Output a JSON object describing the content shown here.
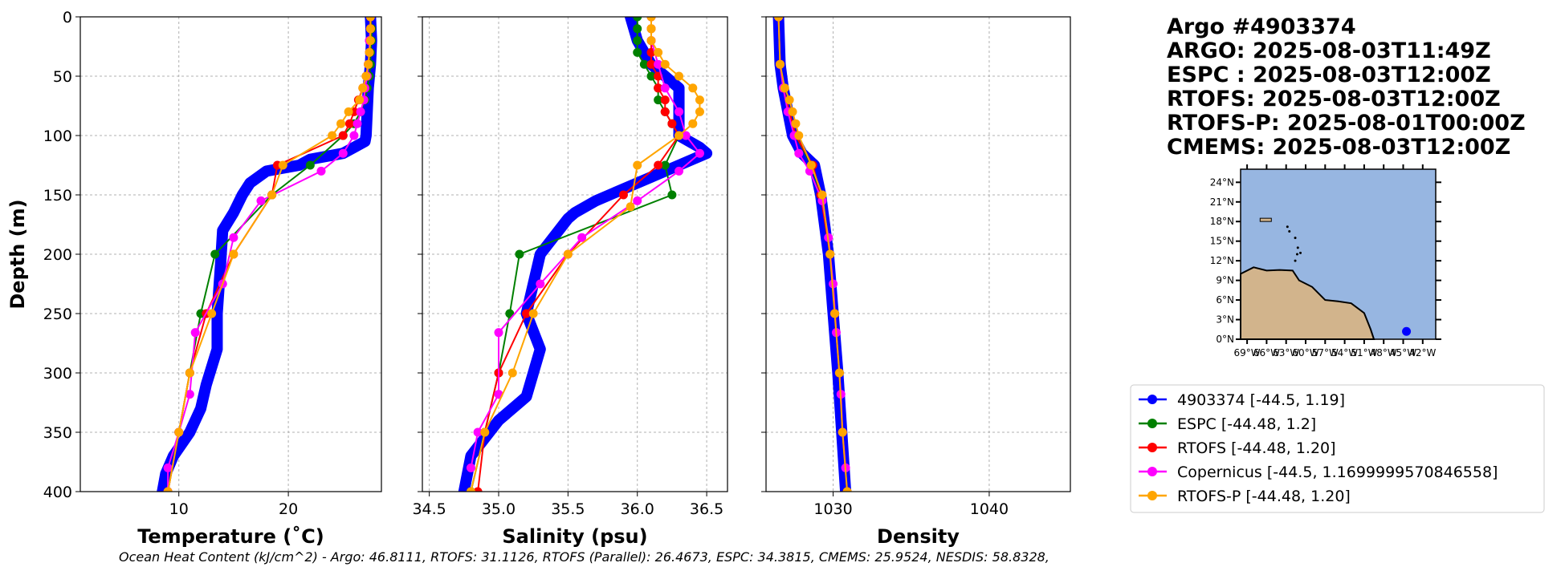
{
  "title_lines": [
    "Argo #4903374",
    "ARGO: 2025-08-03T11:49Z",
    "ESPC : 2025-08-03T12:00Z",
    "RTOFS: 2025-08-03T12:00Z",
    "RTOFS-P: 2025-08-01T00:00Z",
    "CMEMS: 2025-08-03T12:00Z"
  ],
  "ohc_text": "Ocean Heat Content (kJ/cm^2) - Argo: 46.8111,  RTOFS: 31.1126,  RTOFS (Parallel): 26.4673,  ESPC: 34.3815,  CMEMS: 25.9524,  NESDIS: 58.8328,",
  "chart_data": [
    {
      "type": "line",
      "xlabel": "Temperature (˚C)",
      "ylabel": "Depth (m)",
      "xlim": [
        1,
        28.5
      ],
      "ylim": [
        400,
        0
      ],
      "xticks": [
        10,
        20
      ],
      "yticks": [
        0,
        50,
        100,
        150,
        200,
        250,
        300,
        350,
        400
      ],
      "grid": true,
      "series": [
        {
          "name": "Argo",
          "color": "#0000ff",
          "depth": [
            0,
            20,
            40,
            60,
            80,
            100,
            105,
            110,
            115,
            120,
            125,
            130,
            140,
            150,
            165,
            180,
            210,
            250,
            280,
            310,
            330,
            350,
            370,
            385,
            400
          ],
          "values": [
            27.5,
            27.6,
            27.5,
            27.3,
            27.2,
            27.1,
            27,
            26,
            25,
            22,
            21,
            18,
            16.5,
            15.8,
            15,
            14,
            13.8,
            13.5,
            13.5,
            12.5,
            12,
            11,
            9.5,
            8.8,
            8.5
          ]
        },
        {
          "name": "ESPC",
          "color": "#008000",
          "depth": [
            0,
            10,
            20,
            30,
            40,
            50,
            60,
            70,
            80,
            90,
            100,
            125,
            150,
            200,
            250,
            300,
            350,
            400
          ],
          "values": [
            27.5,
            27.6,
            27.6,
            27.5,
            27.5,
            27.4,
            27.2,
            27,
            26.6,
            26,
            25,
            22,
            18.5,
            13.3,
            12,
            11,
            10,
            9
          ]
        },
        {
          "name": "RTOFS",
          "color": "#ff0000",
          "depth": [
            0,
            10,
            20,
            30,
            40,
            50,
            60,
            70,
            80,
            90,
            100,
            125,
            150,
            200,
            250,
            300,
            350,
            400
          ],
          "values": [
            27.5,
            27.5,
            27.4,
            27.4,
            27.3,
            27.1,
            26.8,
            26.4,
            26,
            25.6,
            25,
            19,
            18.5,
            15,
            12.5,
            11,
            10,
            9
          ]
        },
        {
          "name": "Copernicus",
          "color": "#ff00ff",
          "depth": [
            0,
            10,
            20,
            30,
            40,
            50,
            60,
            70,
            80,
            90,
            100,
            115,
            130,
            155,
            186,
            225,
            266,
            318,
            350,
            380,
            400
          ],
          "values": [
            27.5,
            27.5,
            27.4,
            27.4,
            27.3,
            27.2,
            27.0,
            26.9,
            26.6,
            26.3,
            26,
            25,
            23,
            17.5,
            15,
            14,
            11.5,
            11,
            10,
            9,
            9
          ]
        },
        {
          "name": "RTOFS-P",
          "color": "#ffa500",
          "depth": [
            0,
            10,
            20,
            30,
            40,
            50,
            60,
            70,
            80,
            90,
            100,
            125,
            150,
            200,
            250,
            300,
            350,
            400
          ],
          "values": [
            27.5,
            27.5,
            27.5,
            27.4,
            27.3,
            27.1,
            26.8,
            26.5,
            25.5,
            24.8,
            24,
            19.5,
            18.5,
            15,
            13,
            11,
            10,
            9
          ]
        }
      ]
    },
    {
      "type": "line",
      "xlabel": "Salinity (psu)",
      "xlim": [
        34.45,
        36.65
      ],
      "ylim": [
        400,
        0
      ],
      "xticks": [
        34.5,
        35.0,
        35.5,
        36.0,
        36.5
      ],
      "grid": true,
      "series": [
        {
          "name": "Argo",
          "color": "#0000ff",
          "depth": [
            0,
            20,
            40,
            60,
            80,
            100,
            110,
            115,
            125,
            135,
            145,
            155,
            165,
            170,
            200,
            250,
            280,
            320,
            340,
            370,
            400
          ],
          "values": [
            35.95,
            36.0,
            36.1,
            36.3,
            36.3,
            36.3,
            36.45,
            36.5,
            36.3,
            36.1,
            35.9,
            35.7,
            35.55,
            35.5,
            35.3,
            35.2,
            35.3,
            35.2,
            35.0,
            34.8,
            34.75
          ]
        },
        {
          "name": "ESPC",
          "color": "#008000",
          "depth": [
            0,
            10,
            20,
            30,
            40,
            50,
            60,
            70,
            80,
            90,
            100,
            125,
            150,
            200,
            250,
            300,
            350,
            400
          ],
          "values": [
            36.0,
            36.0,
            36.0,
            36.0,
            36.05,
            36.1,
            36.15,
            36.15,
            36.2,
            36.25,
            36.3,
            36.2,
            36.25,
            35.15,
            35.08,
            35.0,
            34.9,
            34.8
          ]
        },
        {
          "name": "RTOFS",
          "color": "#ff0000",
          "depth": [
            0,
            10,
            20,
            30,
            40,
            50,
            60,
            70,
            80,
            90,
            100,
            125,
            150,
            200,
            250,
            300,
            350,
            400
          ],
          "values": [
            36.1,
            36.1,
            36.1,
            36.1,
            36.1,
            36.15,
            36.15,
            36.2,
            36.2,
            36.25,
            36.3,
            36.15,
            35.9,
            35.5,
            35.2,
            35.0,
            34.9,
            34.85
          ]
        },
        {
          "name": "Copernicus",
          "color": "#ff00ff",
          "depth": [
            0,
            20,
            40,
            60,
            80,
            100,
            115,
            130,
            155,
            186,
            225,
            266,
            318,
            350,
            380
          ],
          "values": [
            36.1,
            36.1,
            36.15,
            36.2,
            36.3,
            36.35,
            36.45,
            36.3,
            36.0,
            35.6,
            35.3,
            35.0,
            35.0,
            34.85,
            34.8
          ]
        },
        {
          "name": "RTOFS-P",
          "color": "#ffa500",
          "depth": [
            0,
            10,
            20,
            30,
            40,
            50,
            60,
            70,
            80,
            90,
            100,
            125,
            160,
            200,
            250,
            300,
            350,
            400
          ],
          "values": [
            36.1,
            36.1,
            36.1,
            36.15,
            36.2,
            36.3,
            36.4,
            36.45,
            36.45,
            36.4,
            36.3,
            36.0,
            35.95,
            35.5,
            35.25,
            35.1,
            34.9,
            34.8
          ]
        }
      ]
    },
    {
      "type": "line",
      "xlabel": "Density",
      "xlim": [
        1025.7,
        1045.2
      ],
      "ylim": [
        400,
        0
      ],
      "xticks": [
        1030,
        1040
      ],
      "grid": true,
      "series": [
        {
          "name": "Argo",
          "color": "#0000ff",
          "depth": [
            0,
            40,
            60,
            80,
            100,
            115,
            125,
            150,
            200,
            300,
            400
          ],
          "values": [
            1026.5,
            1026.6,
            1026.8,
            1027.1,
            1027.4,
            1028,
            1028.8,
            1029.2,
            1029.7,
            1030.3,
            1030.8
          ]
        },
        {
          "name": "ESPC",
          "color": "#008000",
          "depth": [
            0,
            40,
            60,
            80,
            100,
            125,
            150,
            200,
            250,
            300,
            350,
            400
          ],
          "values": [
            1026.5,
            1026.6,
            1026.8,
            1027.2,
            1027.6,
            1028.6,
            1029.2,
            1029.8,
            1030.1,
            1030.4,
            1030.6,
            1030.9
          ]
        },
        {
          "name": "RTOFS",
          "color": "#ff0000",
          "depth": [
            0,
            40,
            60,
            80,
            100,
            125,
            150,
            200,
            250,
            300,
            350,
            400
          ],
          "values": [
            1026.5,
            1026.6,
            1026.8,
            1027.2,
            1027.6,
            1028.7,
            1029.2,
            1029.8,
            1030.1,
            1030.4,
            1030.6,
            1030.9
          ]
        },
        {
          "name": "Copernicus",
          "color": "#ff00ff",
          "depth": [
            0,
            40,
            60,
            80,
            100,
            115,
            130,
            155,
            186,
            225,
            266,
            318,
            350,
            380
          ],
          "values": [
            1026.5,
            1026.6,
            1026.8,
            1027.1,
            1027.5,
            1027.8,
            1028.5,
            1029.3,
            1029.7,
            1030.0,
            1030.2,
            1030.5,
            1030.6,
            1030.8
          ]
        },
        {
          "name": "RTOFS-P",
          "color": "#ffa500",
          "depth": [
            0,
            40,
            60,
            70,
            80,
            90,
            100,
            125,
            150,
            200,
            250,
            300,
            350,
            400
          ],
          "values": [
            1026.5,
            1026.6,
            1026.9,
            1027.2,
            1027.4,
            1027.6,
            1027.8,
            1028.6,
            1029.3,
            1029.8,
            1030.1,
            1030.4,
            1030.6,
            1030.9
          ]
        }
      ]
    }
  ],
  "legend": [
    "4903374 [-44.5, 1.19]",
    "ESPC [-44.48, 1.2]",
    "RTOFS [-44.48, 1.20]",
    "Copernicus [-44.5, 1.1699999570846558]",
    "RTOFS-P [-44.48, 1.20]"
  ],
  "legend_colors": [
    "#0000ff",
    "#008000",
    "#ff0000",
    "#ff00ff",
    "#ffa500"
  ],
  "map": {
    "lat_ticks": [
      "0°N",
      "3°N",
      "6°N",
      "9°N",
      "12°N",
      "15°N",
      "18°N",
      "21°N",
      "24°N"
    ],
    "lon_ticks": [
      "69°W",
      "66°W",
      "63°W",
      "60°W",
      "57°W",
      "54°W",
      "51°W",
      "48°W",
      "45°W",
      "42°W"
    ],
    "float_lon": -44.5,
    "float_lat": 1.19,
    "ocean_color": "#97b6e1",
    "land_color": "#d2b48c"
  }
}
